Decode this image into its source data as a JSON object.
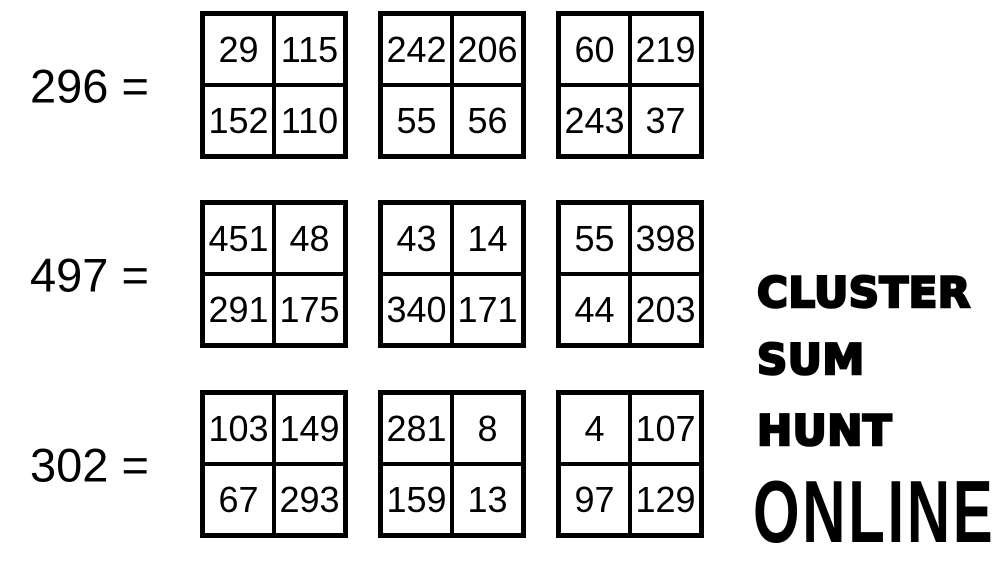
{
  "page": {
    "background_color": "#ffffff",
    "ink_color": "#000000"
  },
  "puzzle": {
    "rows": [
      {
        "label": "296 =",
        "grids": [
          {
            "cells": [
              "29",
              "115",
              "152",
              "110"
            ]
          },
          {
            "cells": [
              "242",
              "206",
              "55",
              "56"
            ]
          },
          {
            "cells": [
              "60",
              "219",
              "243",
              "37"
            ]
          }
        ]
      },
      {
        "label": "497 =",
        "grids": [
          {
            "cells": [
              "451",
              "48",
              "291",
              "175"
            ]
          },
          {
            "cells": [
              "43",
              "14",
              "340",
              "171"
            ]
          },
          {
            "cells": [
              "55",
              "398",
              "44",
              "203"
            ]
          }
        ]
      },
      {
        "label": "302 =",
        "grids": [
          {
            "cells": [
              "103",
              "149",
              "67",
              "293"
            ]
          },
          {
            "cells": [
              "281",
              "8",
              "159",
              "13"
            ]
          },
          {
            "cells": [
              "4",
              "107",
              "97",
              "129"
            ]
          }
        ]
      }
    ]
  },
  "logo": {
    "words": [
      "CLUSTER",
      "SUM",
      "HUNT"
    ],
    "online": "ONLINE"
  }
}
